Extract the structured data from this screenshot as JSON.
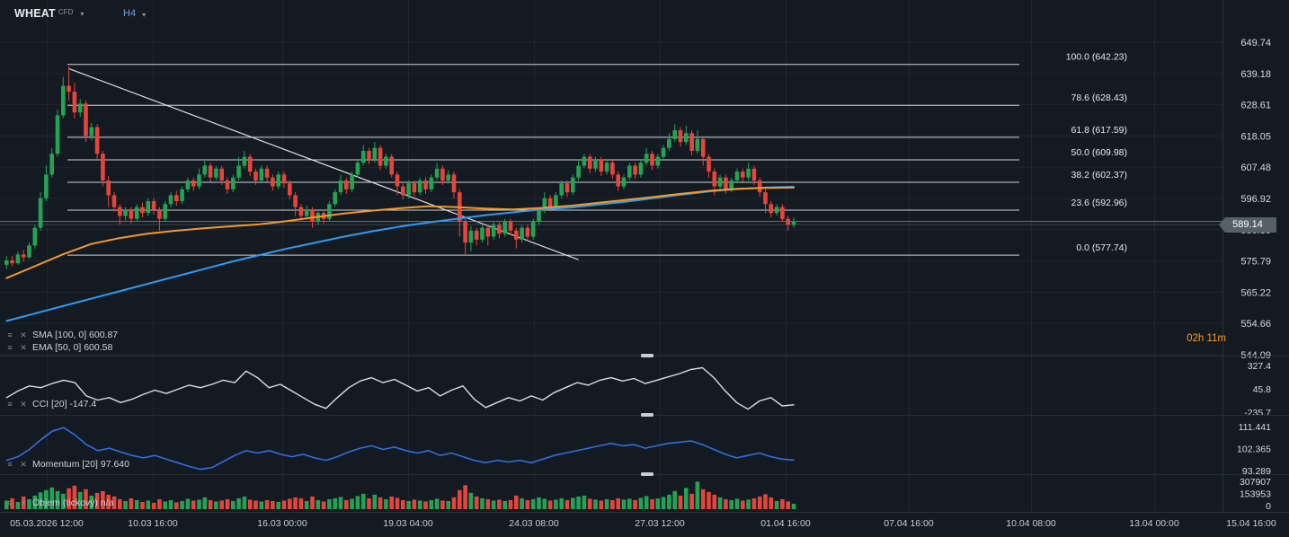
{
  "header": {
    "symbol": "WHEAT",
    "symbol_type": "CFD",
    "timeframe": "H4"
  },
  "icons": {
    "chevron_down": "▾",
    "settings": "≡",
    "close": "✕"
  },
  "legends": {
    "sma": "SMA [100, 0] 600.87",
    "ema": "EMA [50, 0] 600.58",
    "cci": "CCI [20] -147.4",
    "momentum": "Momentum [20] 97.640",
    "volume": "Objem (tickový) n/a"
  },
  "price_badge": "589.14",
  "countdown": "02h 11m",
  "colors": {
    "background": "#141a22",
    "bullish": "#23a455",
    "bearish": "#e7453c",
    "sma": "#2d9cf4",
    "ema": "#f59a23",
    "cci_line": "#d9dee3",
    "momentum_line": "#2f6fe0",
    "fib": "#e6e9ec",
    "trendline": "#e6e9ec",
    "grid": "rgba(255,255,255,0.05)",
    "separator": "#242d37",
    "axis_text": "#d5dae0",
    "time_text": "#c7ced5",
    "price_line": "#98a2ab"
  },
  "chart_data": {
    "type": "candlestick",
    "title": "WHEAT CFD H4",
    "ylim": [
      544.09,
      649.74
    ],
    "price_axis": {
      "ticks": [
        649.74,
        639.18,
        628.61,
        618.05,
        607.48,
        596.92,
        586.35,
        575.79,
        565.22,
        554.66,
        544.09
      ]
    },
    "x_axis": {
      "labels": [
        "05.03.2026 12:00",
        "10.03 16:00",
        "16.03 00:00",
        "19.03 04:00",
        "24.03 08:00",
        "27.03 12:00",
        "01.04 16:00",
        "07.04 16:00",
        "10.04 08:00",
        "13.04 00:00",
        "15.04 16:00"
      ],
      "positions": [
        52,
        170,
        314,
        454,
        594,
        734,
        874,
        1011,
        1147,
        1284,
        1392
      ]
    },
    "current_price": 589.14,
    "candles": [
      [
        574.5,
        577.5,
        573,
        576
      ],
      [
        576,
        577.5,
        574,
        575
      ],
      [
        575,
        579,
        574.5,
        578
      ],
      [
        578,
        579.5,
        575.5,
        577
      ],
      [
        577,
        582,
        576.5,
        581
      ],
      [
        581,
        588,
        580,
        587
      ],
      [
        587,
        599,
        586,
        597
      ],
      [
        597,
        608,
        596,
        605
      ],
      [
        605,
        614,
        604,
        612
      ],
      [
        612,
        627,
        611,
        625
      ],
      [
        625,
        638,
        624,
        635
      ],
      [
        635,
        641.5,
        630,
        633
      ],
      [
        633,
        636,
        624,
        626
      ],
      [
        626,
        630.5,
        624.5,
        629
      ],
      [
        629,
        630,
        616,
        618
      ],
      [
        618,
        622.5,
        616.5,
        621
      ],
      [
        621,
        622,
        610,
        612
      ],
      [
        612,
        613,
        601,
        603
      ],
      [
        603,
        604.5,
        594,
        598
      ],
      [
        598,
        599,
        592.5,
        594
      ],
      [
        594,
        595,
        588,
        591
      ],
      [
        591,
        594,
        589.5,
        593
      ],
      [
        593,
        594,
        588.5,
        590
      ],
      [
        590,
        595,
        589,
        594
      ],
      [
        594,
        595.5,
        590.5,
        592
      ],
      [
        592,
        597,
        591,
        596
      ],
      [
        596,
        597,
        591.5,
        593
      ],
      [
        593,
        594,
        586,
        590
      ],
      [
        590,
        596,
        589,
        595
      ],
      [
        595,
        599,
        594,
        598
      ],
      [
        598,
        599.5,
        594.5,
        596
      ],
      [
        596,
        601,
        595,
        600
      ],
      [
        600,
        604,
        599,
        603
      ],
      [
        603,
        604,
        599.5,
        601
      ],
      [
        601,
        607,
        600,
        605
      ],
      [
        605,
        610,
        604,
        608
      ],
      [
        608,
        609,
        602.5,
        604
      ],
      [
        604,
        608,
        603,
        607
      ],
      [
        607,
        608,
        601.5,
        603
      ],
      [
        603,
        604,
        598.5,
        600
      ],
      [
        600,
        605,
        599,
        604
      ],
      [
        604,
        611,
        603,
        608
      ],
      [
        608,
        613,
        607,
        611
      ],
      [
        611,
        612,
        604.5,
        606
      ],
      [
        606,
        607,
        601.5,
        603
      ],
      [
        603,
        608,
        602,
        607
      ],
      [
        607,
        608,
        602.5,
        604
      ],
      [
        604,
        605,
        599.5,
        601
      ],
      [
        601,
        606,
        600,
        605
      ],
      [
        605,
        606,
        600.5,
        602
      ],
      [
        602,
        603,
        596.5,
        598
      ],
      [
        598,
        599,
        591,
        594
      ],
      [
        594,
        595,
        589.5,
        591
      ],
      [
        591,
        594.5,
        590,
        593
      ],
      [
        593,
        594,
        587,
        589
      ],
      [
        589,
        593,
        588,
        592
      ],
      [
        592,
        593,
        588.5,
        590
      ],
      [
        590,
        596,
        589,
        595
      ],
      [
        595,
        600,
        594,
        599
      ],
      [
        599,
        605,
        598,
        603
      ],
      [
        603,
        604,
        598.5,
        600
      ],
      [
        600,
        606,
        599,
        605
      ],
      [
        605,
        610,
        604,
        609
      ],
      [
        609,
        615,
        608,
        613
      ],
      [
        613,
        614,
        608.5,
        610
      ],
      [
        610,
        616,
        609,
        614
      ],
      [
        614,
        615,
        606.5,
        608
      ],
      [
        608,
        612,
        607,
        611
      ],
      [
        611,
        612,
        604,
        605
      ],
      [
        605,
        606,
        598,
        601
      ],
      [
        601,
        602,
        596.5,
        598
      ],
      [
        598,
        603,
        597,
        602
      ],
      [
        602,
        603,
        597.5,
        599
      ],
      [
        599,
        604,
        598,
        603
      ],
      [
        603,
        604,
        598.5,
        600
      ],
      [
        600,
        605,
        599,
        604
      ],
      [
        604,
        609,
        603,
        607
      ],
      [
        607,
        608,
        601.5,
        603
      ],
      [
        603,
        606.5,
        602,
        605
      ],
      [
        605,
        606,
        597,
        599
      ],
      [
        599,
        600,
        584,
        589
      ],
      [
        589,
        590,
        578,
        582
      ],
      [
        582,
        587.5,
        579,
        586
      ],
      [
        586,
        587,
        581,
        583
      ],
      [
        583,
        588,
        582,
        587
      ],
      [
        587,
        588,
        581,
        584
      ],
      [
        584,
        589,
        583,
        588
      ],
      [
        588,
        589,
        583.5,
        585
      ],
      [
        585,
        590,
        584,
        589
      ],
      [
        589,
        590,
        584.5,
        586
      ],
      [
        586,
        587,
        580,
        583
      ],
      [
        583,
        588,
        582,
        587
      ],
      [
        587,
        588,
        582.5,
        584
      ],
      [
        584,
        590,
        583,
        589
      ],
      [
        589,
        594,
        588,
        593
      ],
      [
        593,
        599,
        592,
        597
      ],
      [
        597,
        598,
        592.5,
        594
      ],
      [
        594,
        599,
        593,
        598
      ],
      [
        598,
        603,
        597,
        602
      ],
      [
        602,
        603,
        597.5,
        599
      ],
      [
        599,
        605,
        598,
        604
      ],
      [
        604,
        610,
        603,
        608
      ],
      [
        608,
        612,
        607,
        611
      ],
      [
        611,
        612,
        605.5,
        607
      ],
      [
        607,
        611,
        606,
        610
      ],
      [
        610,
        611,
        604.5,
        606
      ],
      [
        606,
        610,
        605,
        609
      ],
      [
        609,
        610,
        603.5,
        605
      ],
      [
        605,
        606,
        599.5,
        601
      ],
      [
        601,
        605,
        600,
        604
      ],
      [
        604,
        609,
        603,
        608
      ],
      [
        608,
        609,
        603.5,
        605
      ],
      [
        605,
        610,
        604,
        609
      ],
      [
        609,
        614,
        608,
        612
      ],
      [
        612,
        613,
        606.5,
        608
      ],
      [
        608,
        612,
        607,
        611
      ],
      [
        611,
        615,
        610,
        614
      ],
      [
        614,
        619,
        613,
        617
      ],
      [
        617,
        622,
        616,
        620
      ],
      [
        620,
        621,
        614.5,
        616
      ],
      [
        616,
        621.5,
        615,
        619
      ],
      [
        619,
        620,
        611.5,
        613
      ],
      [
        613,
        620,
        612,
        617
      ],
      [
        617,
        618,
        608,
        611
      ],
      [
        611,
        612,
        604,
        606
      ],
      [
        606,
        607,
        598,
        601
      ],
      [
        601,
        605,
        600,
        604
      ],
      [
        604,
        605,
        598.5,
        600
      ],
      [
        600,
        604,
        599,
        603
      ],
      [
        603,
        607,
        602,
        606
      ],
      [
        606,
        607,
        602.5,
        604
      ],
      [
        604,
        609,
        603,
        607
      ],
      [
        607,
        608,
        601.5,
        603
      ],
      [
        603,
        604,
        597.5,
        599
      ],
      [
        599,
        600,
        592,
        595
      ],
      [
        595,
        596,
        590.5,
        592
      ],
      [
        592,
        595,
        591,
        594
      ],
      [
        594,
        595,
        589,
        590
      ],
      [
        590,
        591,
        586,
        588
      ],
      [
        588,
        590.5,
        587,
        589.14
      ]
    ],
    "overlays": {
      "sma100": {
        "name": "SMA [100, 0]",
        "current": 600.87,
        "points": [
          555.5,
          558,
          560.5,
          563,
          565.5,
          568,
          570.5,
          573,
          575.5,
          577.8,
          580,
          582,
          584,
          585.8,
          587.4,
          588.8,
          590,
          591.2,
          592.2,
          593.2,
          593.8,
          594.8,
          595.8,
          597,
          598.2,
          599.3,
          600.1,
          600.6,
          600.87
        ]
      },
      "ema50": {
        "name": "EMA [50, 0]",
        "current": 600.58,
        "points": [
          570,
          574,
          578,
          581.5,
          583.5,
          585,
          586,
          586.8,
          587.5,
          588.2,
          589.3,
          590.6,
          591.8,
          592.8,
          593.6,
          594.3,
          594.0,
          593.5,
          593.2,
          593.7,
          594.4,
          595.4,
          596.4,
          597.4,
          598.5,
          599.5,
          600.2,
          600.5,
          600.58
        ]
      },
      "fibonacci": [
        {
          "label": "100.0 (642.23)",
          "price": 642.23
        },
        {
          "label": "78.6 (628.43)",
          "price": 628.43
        },
        {
          "label": "61.8 (617.59)",
          "price": 617.59
        },
        {
          "label": "50.0 (609.98)",
          "price": 609.98
        },
        {
          "label": "38.2 (602.37)",
          "price": 602.37
        },
        {
          "label": "23.6 (592.96)",
          "price": 592.96
        },
        {
          "label": "0.0 (577.74)",
          "price": 577.74
        }
      ],
      "trendline": {
        "bar1": 11,
        "price1": 640.8,
        "bar2": 101,
        "price2": 576.2
      },
      "price_lines": [
        589.14,
        588.1
      ]
    },
    "indicators": {
      "cci": {
        "name": "CCI [20]",
        "current": -147.4,
        "ticks": [
          327.4,
          45.8,
          -235.7
        ],
        "values": [
          -60,
          20,
          80,
          60,
          110,
          150,
          120,
          -40,
          -90,
          -60,
          -120,
          -80,
          -20,
          30,
          -10,
          40,
          90,
          60,
          100,
          150,
          120,
          260,
          180,
          60,
          100,
          20,
          -60,
          -140,
          -190,
          -60,
          60,
          140,
          180,
          120,
          160,
          90,
          20,
          60,
          -40,
          30,
          80,
          -80,
          -180,
          -120,
          -60,
          -100,
          -40,
          -90,
          0,
          60,
          120,
          90,
          150,
          180,
          140,
          170,
          110,
          150,
          190,
          230,
          280,
          300,
          180,
          20,
          -120,
          -200,
          -100,
          -60,
          -160,
          -147.4
        ]
      },
      "momentum": {
        "name": "Momentum [20]",
        "current": 97.64,
        "ticks": [
          111.441,
          102.365,
          93.289
        ],
        "values": [
          97.5,
          99,
          102,
          106,
          109.5,
          111,
          108,
          104,
          101.5,
          102.5,
          101,
          99.5,
          98.5,
          99.5,
          98,
          96.5,
          95,
          93.8,
          94.5,
          97,
          99.5,
          101.5,
          100.5,
          101.5,
          100,
          99,
          100,
          98.5,
          97.5,
          99,
          101,
          102.5,
          103.5,
          102,
          103,
          101.5,
          100.5,
          101.5,
          99.5,
          100.5,
          99,
          97.5,
          96.5,
          97.5,
          96.8,
          97.5,
          96.5,
          98,
          99.5,
          100.5,
          101.5,
          102.5,
          103.5,
          104.5,
          103.5,
          104,
          102.5,
          103.5,
          104.5,
          105,
          105.5,
          104,
          102,
          100,
          98.5,
          99.5,
          100.5,
          99,
          98,
          97.64
        ]
      },
      "volume": {
        "name": "Objem (tickový)",
        "current": "n/a",
        "ticks": [
          307907,
          153953,
          0
        ],
        "values": [
          95000,
          120000,
          80000,
          140000,
          110000,
          150000,
          185000,
          210000,
          240000,
          200000,
          170000,
          230000,
          260000,
          190000,
          220000,
          150000,
          180000,
          200000,
          160000,
          140000,
          110000,
          90000,
          120000,
          100000,
          80000,
          95000,
          70000,
          110000,
          85000,
          100000,
          75000,
          90000,
          115000,
          95000,
          105000,
          130000,
          100000,
          85000,
          95000,
          110000,
          90000,
          120000,
          140000,
          105000,
          95000,
          85000,
          100000,
          90000,
          80000,
          95000,
          115000,
          130000,
          120000,
          90000,
          140000,
          100000,
          85000,
          110000,
          120000,
          135000,
          100000,
          115000,
          145000,
          170000,
          120000,
          160000,
          130000,
          110000,
          140000,
          125000,
          100000,
          90000,
          105000,
          95000,
          85000,
          100000,
          115000,
          95000,
          90000,
          130000,
          210000,
          265000,
          180000,
          140000,
          120000,
          110000,
          95000,
          105000,
          90000,
          100000,
          150000,
          120000,
          100000,
          110000,
          130000,
          115000,
          95000,
          105000,
          120000,
          100000,
          125000,
          140000,
          150000,
          115000,
          105000,
          95000,
          110000,
          100000,
          120000,
          105000,
          115000,
          100000,
          125000,
          145000,
          110000,
          120000,
          135000,
          160000,
          200000,
          150000,
          235000,
          170000,
          305000,
          220000,
          190000,
          160000,
          130000,
          110000,
          100000,
          115000,
          95000,
          105000,
          120000,
          140000,
          165000,
          130000,
          90000,
          110000,
          85000,
          60000
        ]
      }
    }
  }
}
